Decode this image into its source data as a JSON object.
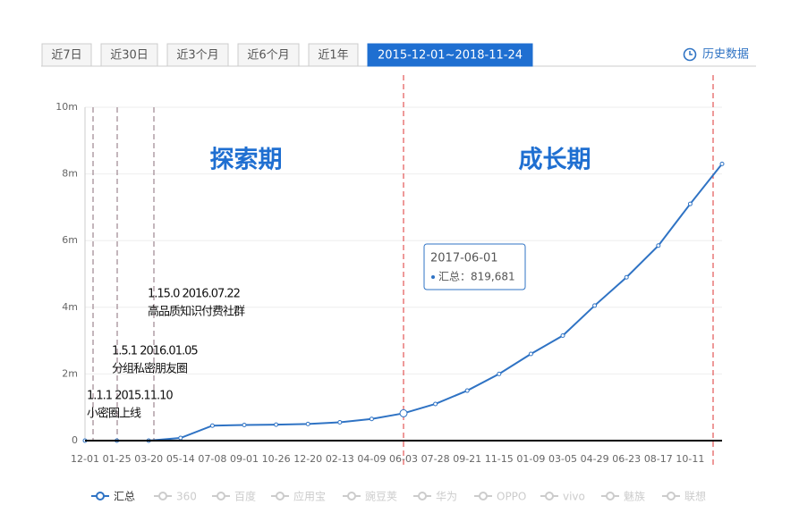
{
  "tabs": [
    "近7日",
    "近30日",
    "近3个月",
    "近6个月",
    "近1年",
    "2015-12-01~2018-11-24"
  ],
  "active_tab": 5,
  "history_link": "历史数据",
  "chart_data": {
    "type": "line",
    "categories": [
      "12-01",
      "01-25",
      "03-20",
      "05-14",
      "07-08",
      "09-01",
      "10-26",
      "12-20",
      "02-13",
      "04-09",
      "06-03",
      "07-28",
      "09-21",
      "11-15",
      "01-09",
      "03-05",
      "04-29",
      "06-23",
      "08-17",
      "10-11",
      null
    ],
    "series": [
      {
        "name": "汇总",
        "color": "#2f73c4",
        "values": [
          0,
          0,
          0,
          80000,
          450000,
          470000,
          480000,
          500000,
          550000,
          650000,
          819681,
          1100000,
          1500000,
          2000000,
          2600000,
          3150000,
          4050000,
          4900000,
          5850000,
          7100000,
          8300000
        ]
      }
    ],
    "inactive_series": [
      "360",
      "百度",
      "应用宝",
      "豌豆荚",
      "华为",
      "OPPO",
      "vivo",
      "魅族",
      "联想"
    ],
    "ylim": [
      0,
      10000000
    ],
    "yticks": [
      0,
      {
        "value": 2000000,
        "label": "2m"
      },
      {
        "value": 4000000,
        "label": "4m"
      },
      {
        "value": 6000000,
        "label": "6m"
      },
      {
        "value": 8000000,
        "label": "8m"
      },
      {
        "value": 10000000,
        "label": "10m"
      }
    ],
    "grid": true,
    "phases": [
      "探索期",
      "成长期"
    ],
    "annotations": [
      {
        "version": "1.1.1 2015.11.10",
        "text": "小密圈上线"
      },
      {
        "version": "1.5.1 2016.01.05",
        "text": "分组私密朋友圈"
      },
      {
        "version": "1.15.0 2016.07.22",
        "text": "高品质知识付费社群"
      }
    ],
    "tooltip": {
      "date": "2017-06-01",
      "text": "汇总：819,681"
    }
  }
}
